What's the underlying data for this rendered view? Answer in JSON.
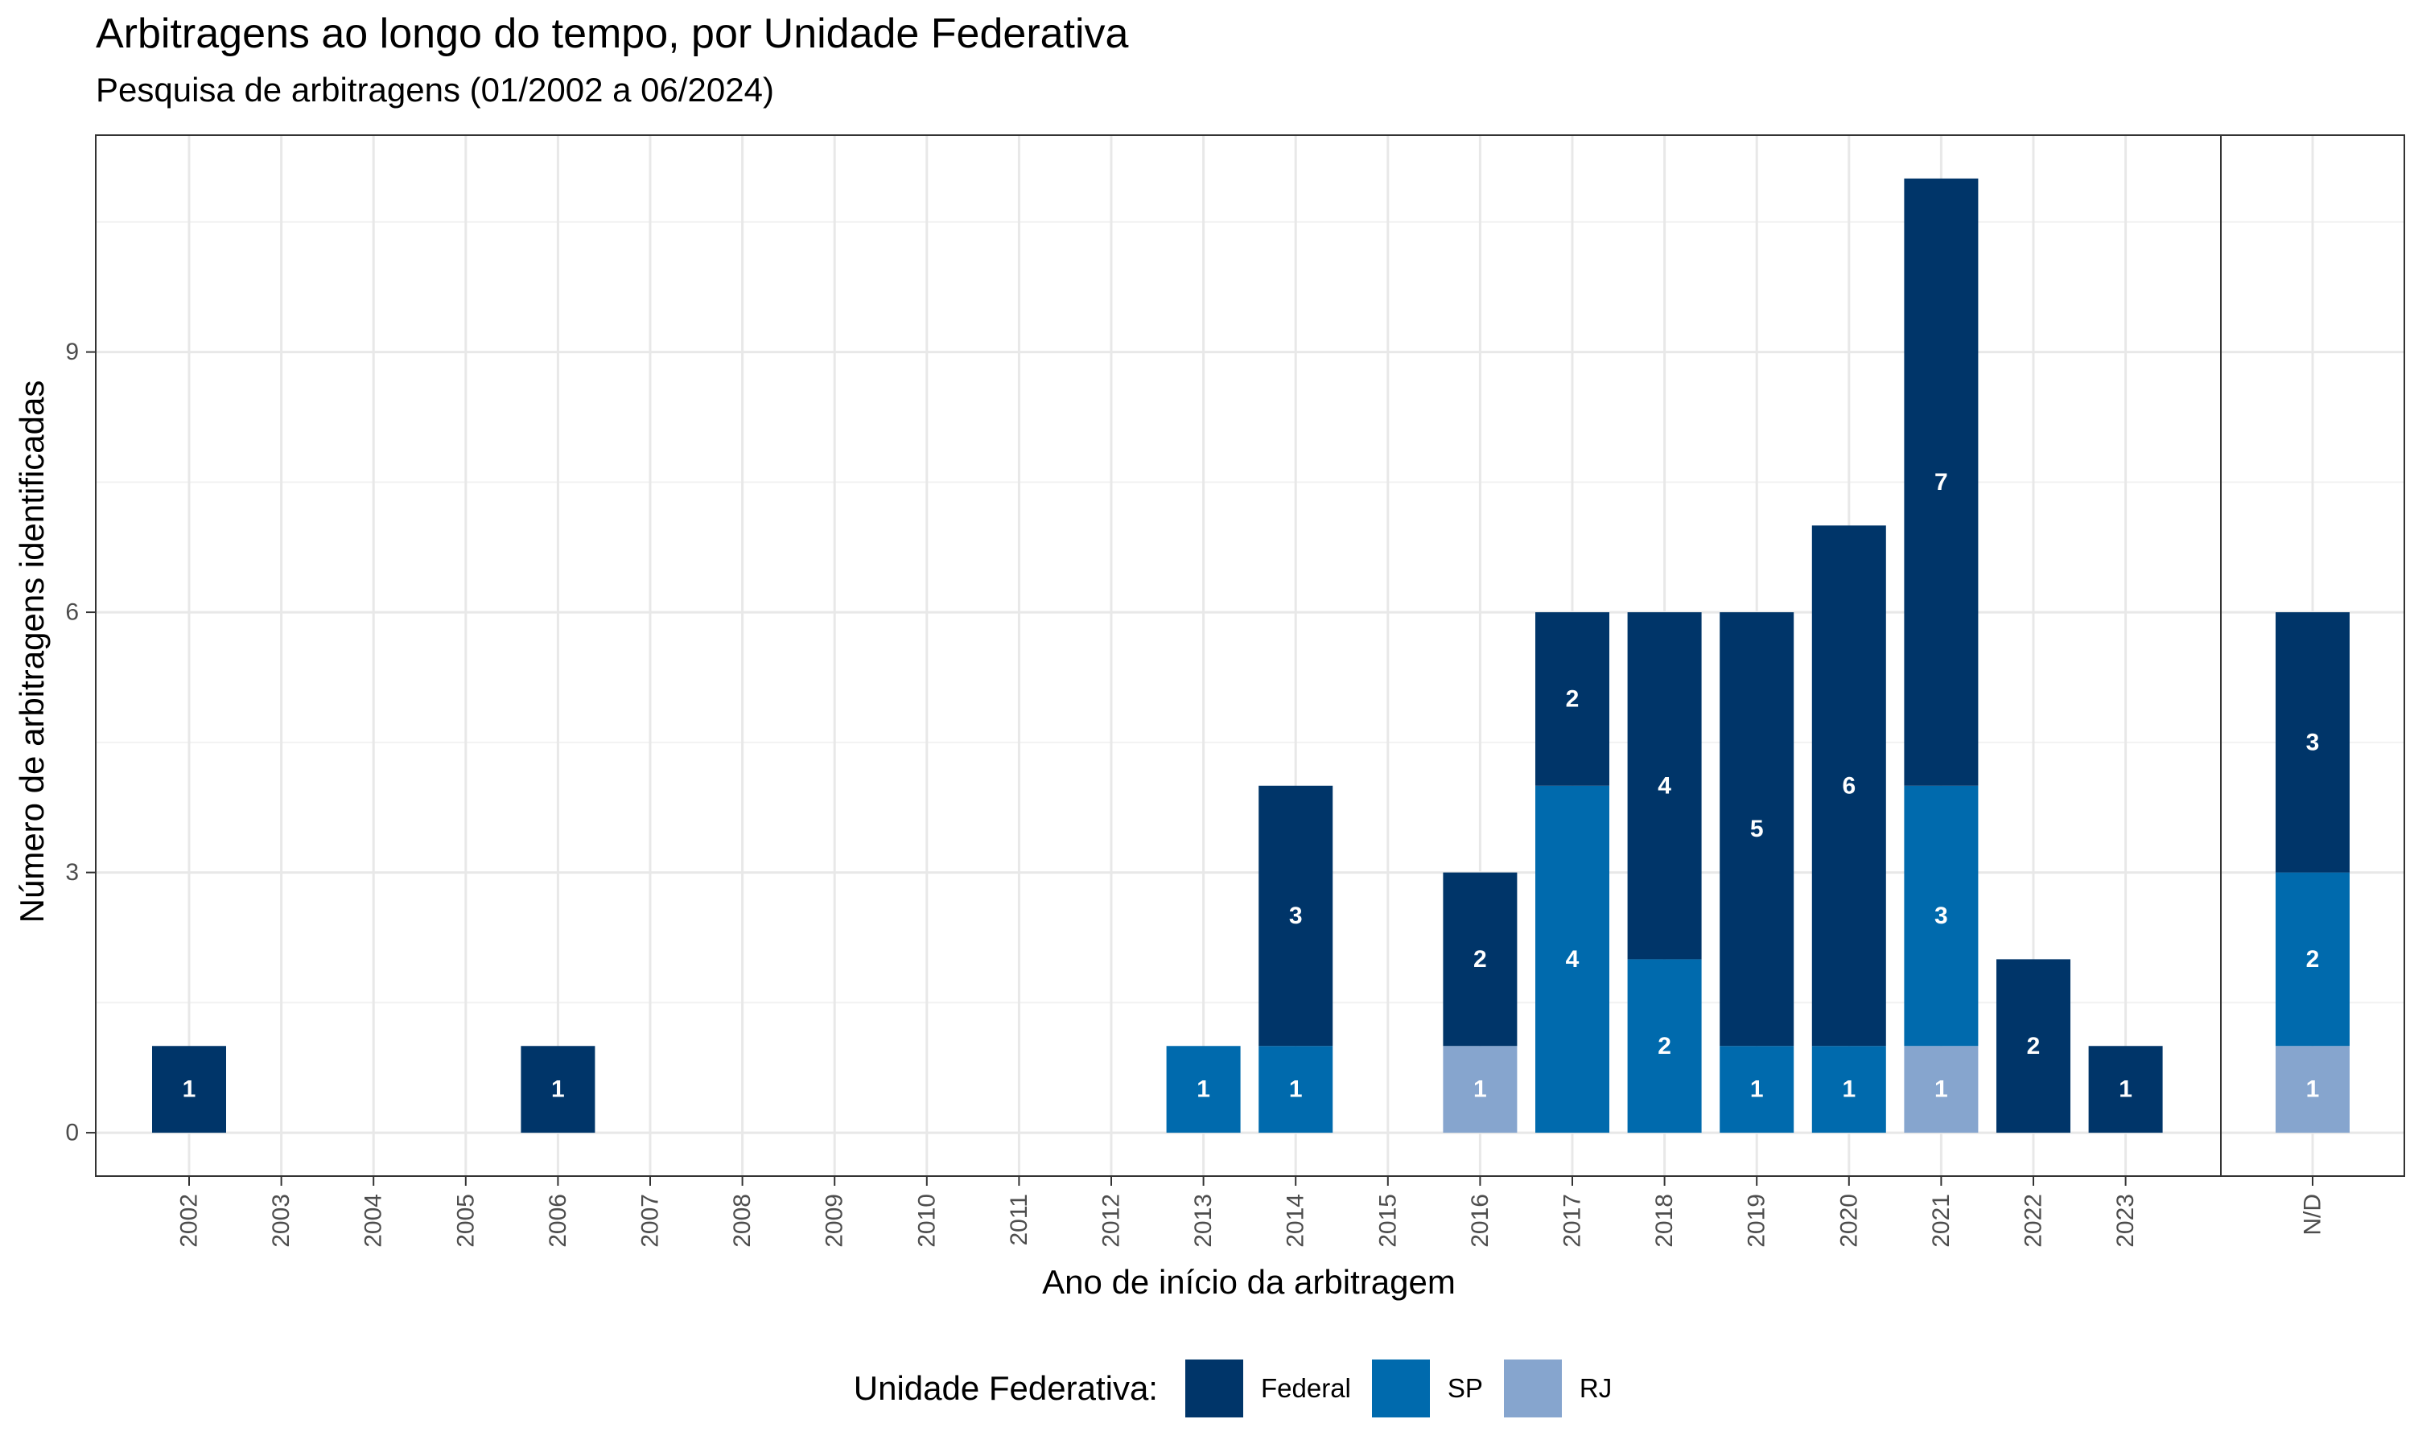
{
  "title": "Arbitragens ao longo do tempo, por Unidade Federativa",
  "subtitle": "Pesquisa de arbitragens (01/2002 a 06/2024)",
  "legend": {
    "title": "Unidade Federativa:",
    "items": [
      {
        "name": "Federal",
        "color": "#003569"
      },
      {
        "name": "SP",
        "color": "#006AAD"
      },
      {
        "name": "RJ",
        "color": "#86A5CE"
      }
    ]
  },
  "chart_data": {
    "type": "bar",
    "stacked": true,
    "xlabel": "Ano de início da arbitragem",
    "ylabel": "Número de arbitragens identificadas",
    "ylim": [
      -0.5,
      11.5
    ],
    "yticks": [
      0,
      3,
      6,
      9
    ],
    "grid": true,
    "legend_position": "bottom",
    "panels": [
      {
        "categories": [
          "2002",
          "2003",
          "2004",
          "2005",
          "2006",
          "2007",
          "2008",
          "2009",
          "2010",
          "2011",
          "2012",
          "2013",
          "2014",
          "2015",
          "2016",
          "2017",
          "2018",
          "2019",
          "2020",
          "2021",
          "2022",
          "2023"
        ]
      },
      {
        "categories": [
          "N/D"
        ]
      }
    ],
    "series": [
      {
        "name": "Federal",
        "color": "#003569",
        "values": [
          1,
          0,
          0,
          0,
          1,
          0,
          0,
          0,
          0,
          0,
          0,
          0,
          3,
          0,
          2,
          2,
          4,
          5,
          6,
          7,
          2,
          1,
          3
        ]
      },
      {
        "name": "SP",
        "color": "#006AAD",
        "values": [
          0,
          0,
          0,
          0,
          0,
          0,
          0,
          0,
          0,
          0,
          0,
          1,
          1,
          0,
          0,
          4,
          2,
          1,
          1,
          3,
          0,
          0,
          2
        ]
      },
      {
        "name": "RJ",
        "color": "#86A5CE",
        "values": [
          0,
          0,
          0,
          0,
          0,
          0,
          0,
          0,
          0,
          0,
          0,
          0,
          0,
          0,
          1,
          0,
          0,
          0,
          0,
          1,
          0,
          0,
          1
        ]
      }
    ]
  }
}
